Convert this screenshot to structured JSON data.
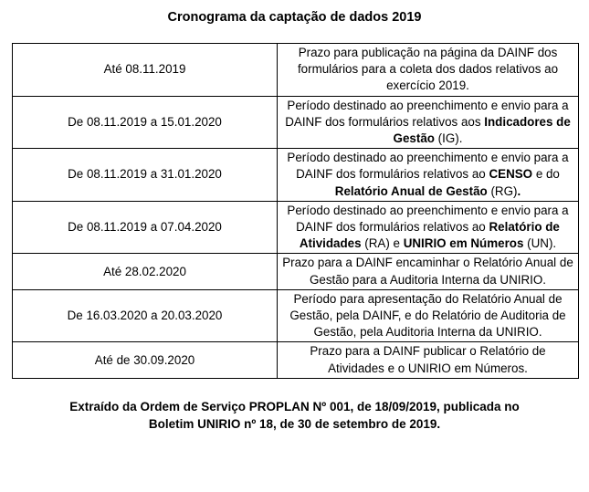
{
  "title": "Cronograma da captação de dados 2019",
  "table": {
    "rows": [
      {
        "period": "Até 08.11.2019",
        "description": [
          {
            "text": "Prazo para publicação na página da DAINF dos formulários para a coleta dos dados relativos ao exercício 2019.",
            "bold": false
          }
        ]
      },
      {
        "period": "De 08.11.2019 a 15.01.2020",
        "description": [
          {
            "text": "Período destinado ao preenchimento e envio para a DAINF dos formulários relativos aos ",
            "bold": false
          },
          {
            "text": "Indicadores de Gestão",
            "bold": true
          },
          {
            "text": " (IG).",
            "bold": false
          }
        ]
      },
      {
        "period": "De 08.11.2019 a 31.01.2020",
        "description": [
          {
            "text": "Período destinado ao preenchimento e envio para a DAINF dos formulários relativos ao ",
            "bold": false
          },
          {
            "text": "CENSO",
            "bold": true
          },
          {
            "text": " e do ",
            "bold": false
          },
          {
            "text": "Relatório Anual de Gestão",
            "bold": true
          },
          {
            "text": " (RG)",
            "bold": false
          },
          {
            "text": ".",
            "bold": true
          }
        ]
      },
      {
        "period": "De 08.11.2019 a 07.04.2020",
        "description": [
          {
            "text": "Período destinado ao preenchimento e envio para a DAINF dos formulários relativos ao ",
            "bold": false
          },
          {
            "text": "Relatório de Atividades",
            "bold": true
          },
          {
            "text": " (RA) e ",
            "bold": false
          },
          {
            "text": "UNIRIO em Números",
            "bold": true
          },
          {
            "text": " (UN).",
            "bold": false
          }
        ]
      },
      {
        "period": "Até 28.02.2020",
        "description": [
          {
            "text": "Prazo para a DAINF encaminhar o Relatório Anual de Gestão para a Auditoria Interna da UNIRIO.",
            "bold": false
          }
        ]
      },
      {
        "period": "De 16.03.2020 a 20.03.2020",
        "description": [
          {
            "text": "Período para apresentação do Relatório Anual de Gestão, pela DAINF, e do Relatório de Auditoria de Gestão, pela Auditoria Interna da UNIRIO.",
            "bold": false
          }
        ]
      },
      {
        "period": "Até de 30.09.2020",
        "description": [
          {
            "text": "Prazo para a DAINF publicar o Relatório de Atividades e o UNIRIO em Números.",
            "bold": false
          }
        ]
      }
    ]
  },
  "footer": {
    "lines": [
      "Extraído da Ordem de Serviço PROPLAN Nº 001, de 18/09/2019, publicada no",
      "Boletim UNIRIO nº 18, de 30 de setembro de 2019."
    ]
  }
}
